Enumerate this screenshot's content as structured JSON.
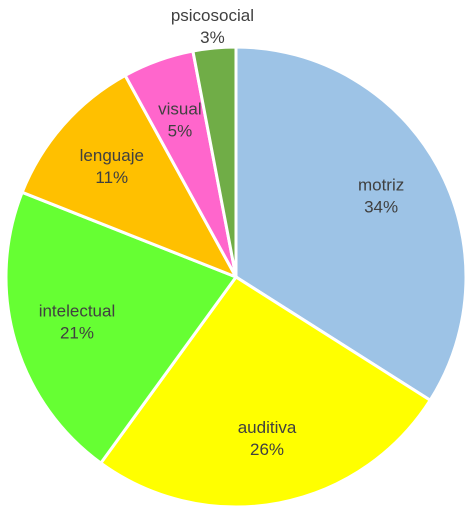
{
  "chart_data": {
    "type": "pie",
    "categories": [
      "motriz",
      "auditiva",
      "intelectual",
      "lenguaje",
      "visual",
      "psicosocial"
    ],
    "values": [
      34,
      26,
      21,
      11,
      5,
      3
    ],
    "value_labels": [
      "34%",
      "26%",
      "21%",
      "11%",
      "5%",
      "3%"
    ],
    "colors": [
      "#9dc3e6",
      "#ffff00",
      "#66ff33",
      "#ffc000",
      "#ff66cc",
      "#70ad47"
    ]
  }
}
